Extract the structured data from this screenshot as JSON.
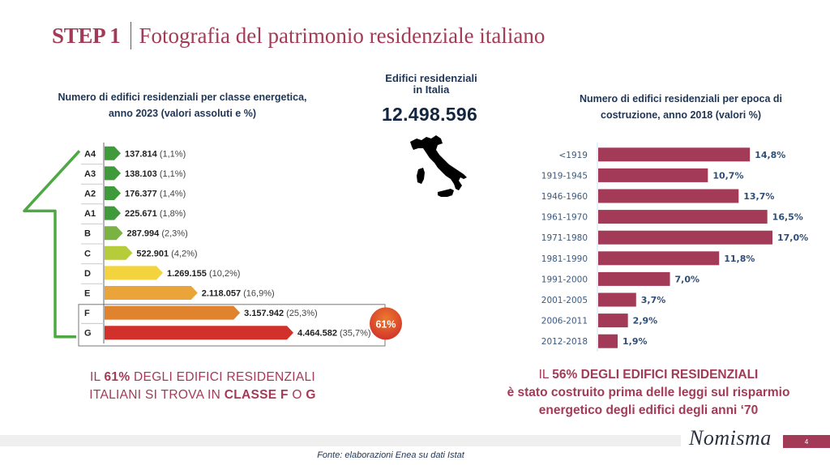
{
  "header": {
    "step": "STEP 1",
    "title": "Fotografia del patrimonio residenziale italiano"
  },
  "center": {
    "title_line1": "Edifici residenziali",
    "title_line2": "in Italia",
    "total": "12.498.596",
    "map_icon": "italy-map-icon"
  },
  "left_message": {
    "l1a": "IL ",
    "l1b": "61%",
    "l1c": " DEGLI EDIFICI RESIDENZIALI",
    "l2a": "ITALIANI SI TROVA IN ",
    "l2b": "CLASSE F",
    "l2c": " O ",
    "l2d": "G"
  },
  "right_message": {
    "l1a": "IL ",
    "l1b": "56%",
    "l1c": " DEGLI EDIFICI RESIDENZIALI",
    "l2": "è stato costruito prima delle leggi sul risparmio",
    "l3": "energetico degli edifici degli anni ‘70"
  },
  "footer": {
    "logo": "Nomisma",
    "page_number": "4",
    "source": "Fonte: elaborazioni Enea su dati Istat"
  },
  "colors": {
    "brand": "#a33a57",
    "navy": "#1e3556",
    "arrow_green": "#4ea843"
  },
  "chart_data": [
    {
      "type": "bar",
      "orientation": "horizontal",
      "title": "Numero di edifici residenziali per classe energetica, anno 2023 (valori assoluti e %)",
      "categories": [
        "A4",
        "A3",
        "A2",
        "A1",
        "B",
        "C",
        "D",
        "E",
        "F",
        "G"
      ],
      "values": [
        137814,
        138103,
        176377,
        225671,
        287994,
        522901,
        1269155,
        2118057,
        3157942,
        4464582
      ],
      "value_labels": [
        "137.814",
        "138.103",
        "176.377",
        "225.671",
        "287.994",
        "522.901",
        "1.269.155",
        "2.118.057",
        "3.157.942",
        "4.464.582"
      ],
      "percent_labels": [
        "(1,1%)",
        "(1,1%)",
        "(1,4%)",
        "(1,8%)",
        "(2,3%)",
        "(4,2%)",
        "(10,2%)",
        "(16,9%)",
        "(25,3%)",
        "(35,7%)"
      ],
      "bar_colors": [
        "#3f9a3c",
        "#3f9a3c",
        "#3f9a3c",
        "#3f9a3c",
        "#7ab342",
        "#b7cc3a",
        "#f3d43f",
        "#eaa43a",
        "#e0832f",
        "#d2302a"
      ],
      "highlight": {
        "categories": [
          "F",
          "G"
        ],
        "badge": "61%"
      }
    },
    {
      "type": "bar",
      "orientation": "horizontal",
      "title": "Numero di edifici residenziali per epoca di costruzione, anno 2018 (valori %)",
      "categories": [
        "<1919",
        "1919-1945",
        "1946-1960",
        "1961-1970",
        "1971-1980",
        "1981-1990",
        "1991-2000",
        "2001-2005",
        "2006-2011",
        "2012-2018"
      ],
      "values": [
        14.8,
        10.7,
        13.7,
        16.5,
        17.0,
        11.8,
        7.0,
        3.7,
        2.9,
        1.9
      ],
      "value_labels": [
        "14,8%",
        "10,7%",
        "13,7%",
        "16,5%",
        "17,0%",
        "11,8%",
        "7,0%",
        "3,7%",
        "2,9%",
        "1,9%"
      ],
      "unit": "%",
      "bar_color": "#a33a57"
    }
  ]
}
